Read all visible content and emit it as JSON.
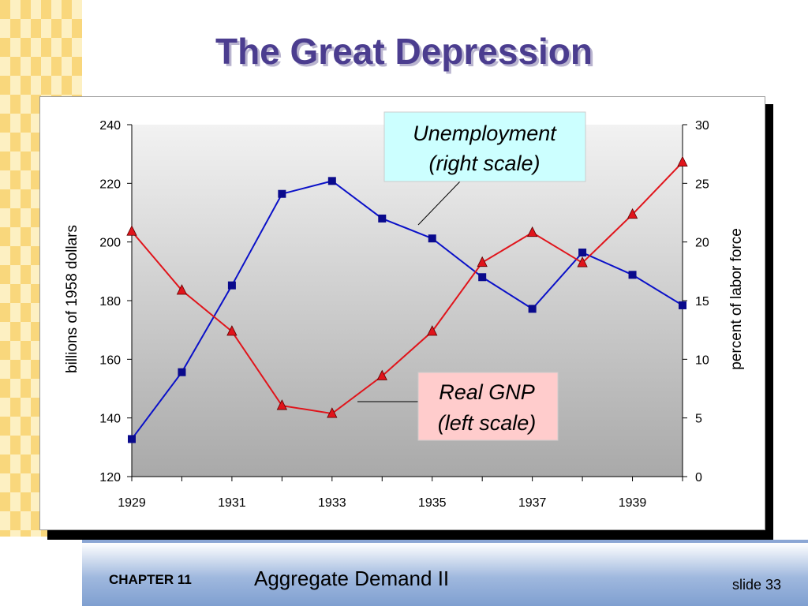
{
  "slide": {
    "title": "The Great Depression",
    "chapter": "CHAPTER 11",
    "subject": "Aggregate Demand II",
    "slide_number": "slide 33"
  },
  "colors": {
    "title": "#4b3d8f",
    "stripe_light": "#fdf0c2",
    "stripe_dark": "#f9d77c",
    "unemployment": "#0a10c8",
    "unemployment_marker": "#0a0a8c",
    "gnp": "#e0141b",
    "gnp_marker": "#e0141b",
    "unemployment_callout_bg": "#ccffff",
    "gnp_callout_bg": "#ffcccc"
  },
  "chart_data": {
    "type": "line",
    "title": "",
    "xlabel": "",
    "ylabel_left": "billions of 1958 dollars",
    "ylabel_right": "percent of labor force",
    "x": [
      1929,
      1930,
      1931,
      1932,
      1933,
      1934,
      1935,
      1936,
      1937,
      1938,
      1939,
      1940
    ],
    "x_tick_labels": [
      "1929",
      "1931",
      "1933",
      "1935",
      "1937",
      "1939"
    ],
    "ylim_left": [
      120,
      240
    ],
    "y_ticks_left": [
      "120",
      "140",
      "160",
      "180",
      "200",
      "220",
      "240"
    ],
    "ylim_right": [
      0,
      30
    ],
    "y_ticks_right": [
      "0",
      "5",
      "10",
      "15",
      "20",
      "25",
      "30"
    ],
    "grid": false,
    "plot_background": "gray-gradient",
    "series": [
      {
        "name": "Unemployment",
        "axis": "right",
        "marker": "square",
        "values": [
          3.2,
          8.9,
          16.3,
          24.1,
          25.2,
          22.0,
          20.3,
          17.0,
          14.3,
          19.1,
          17.2,
          14.6
        ]
      },
      {
        "name": "Real GNP",
        "axis": "left",
        "marker": "triangle",
        "values": [
          203.6,
          183.5,
          169.5,
          144.2,
          141.5,
          154.3,
          169.5,
          193.0,
          203.2,
          192.9,
          209.4,
          227.2
        ]
      }
    ],
    "annotations": [
      {
        "series": "Unemployment",
        "lines": [
          "Unemployment",
          "(right scale)"
        ]
      },
      {
        "series": "Real GNP",
        "lines": [
          "Real GNP",
          "(left scale)"
        ]
      }
    ]
  }
}
